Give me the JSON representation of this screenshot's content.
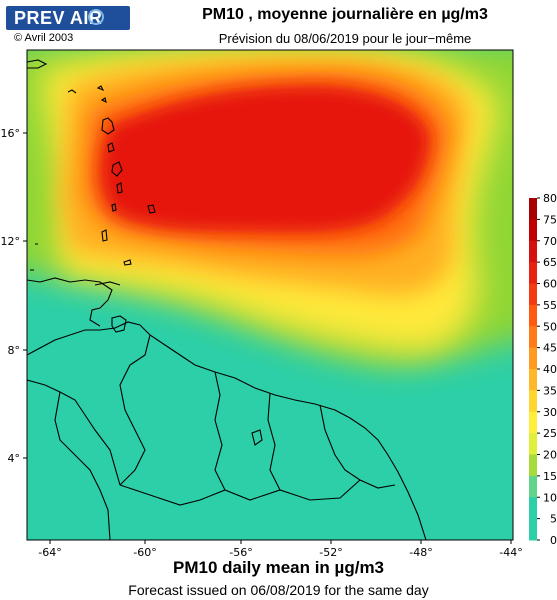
{
  "header": {
    "logo_text": "PREV AIR",
    "copyright": "© Avril 2003",
    "title": "PM10 , moyenne journalière en µg/m3",
    "subtitle": "Prévision du 08/06/2019 pour le jour−même"
  },
  "map": {
    "lon_ticks": [
      "-64°",
      "-60°",
      "-56°",
      "-52°",
      "-48°",
      "-44°"
    ],
    "lat_ticks": [
      "16°",
      "12°",
      "8°",
      "4°"
    ],
    "ocean_color": "#2ccfa8",
    "colors": {
      "low": "#2ccfa8",
      "green": "#8fd635",
      "yellow": "#ffe93a",
      "orange": "#ffb020",
      "dark_orange": "#ff6a10",
      "red": "#e61410"
    }
  },
  "colorbar": {
    "labels": [
      "80",
      "75",
      "70",
      "65",
      "60",
      "55",
      "50",
      "45",
      "40",
      "35",
      "30",
      "25",
      "20",
      "15",
      "10",
      "5",
      "0"
    ],
    "colors": [
      "#a80000",
      "#c00000",
      "#d41010",
      "#e82010",
      "#f43a10",
      "#ff5a10",
      "#ff7a18",
      "#ff9a20",
      "#ffb828",
      "#ffd630",
      "#ffee3a",
      "#e0f03a",
      "#a6dc3a",
      "#5fd48a",
      "#2ccfa8",
      "#2ccfa8",
      "#2ccfa8"
    ]
  },
  "footer": {
    "title": "PM10 daily mean in µg/m3",
    "subtitle": "Forecast issued on 06/08/2019 for the same day"
  }
}
